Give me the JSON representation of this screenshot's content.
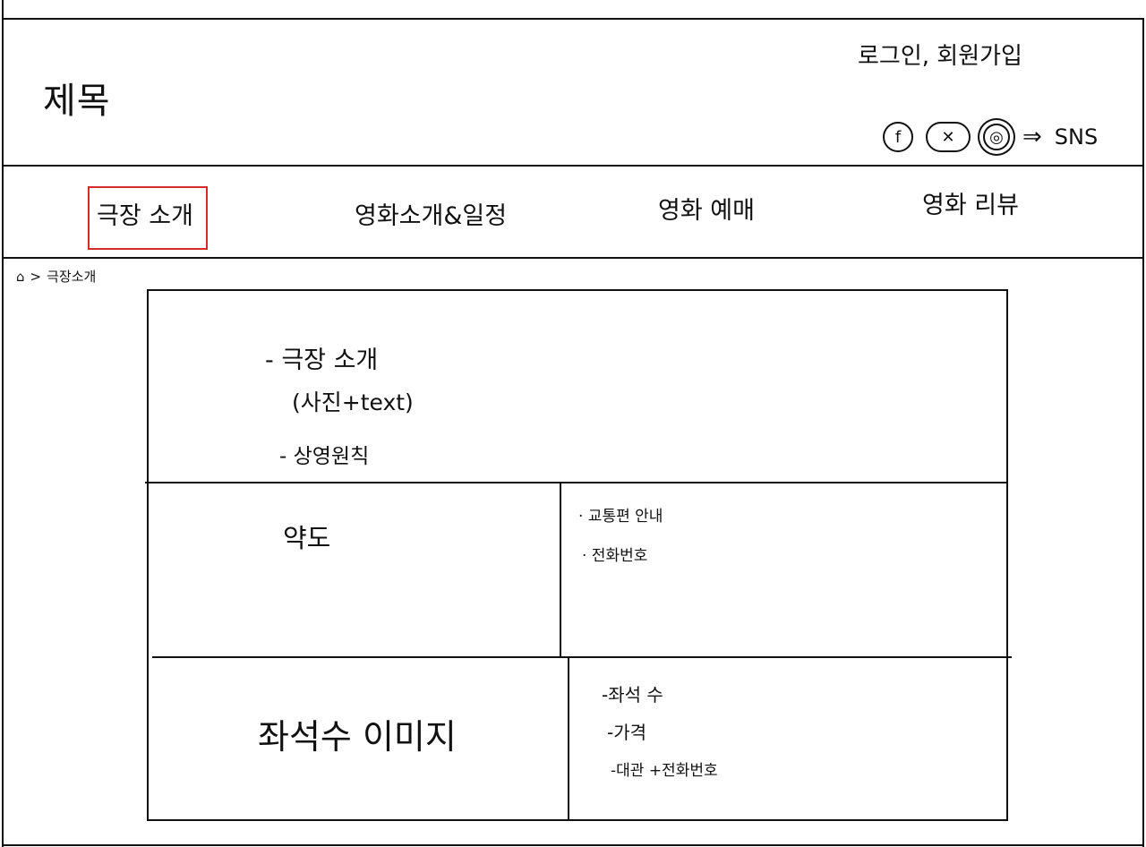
{
  "header": {
    "title": "제목",
    "auth_links": "로그인, 회원가입",
    "sns_icons": [
      {
        "name": "facebook-icon",
        "glyph": "f"
      },
      {
        "name": "twitter-icon",
        "glyph": "✕"
      },
      {
        "name": "instagram-icon",
        "glyph": "◎"
      }
    ],
    "sns_arrow": "⇒",
    "sns_label": "SNS"
  },
  "nav": {
    "items": [
      {
        "label": "극장 소개"
      },
      {
        "label": "영화소개&일정"
      },
      {
        "label": "영화 예매"
      },
      {
        "label": "영화 리뷰"
      }
    ]
  },
  "breadcrumb": {
    "home_icon": "⌂",
    "separator": ">",
    "current": "극장소개"
  },
  "content": {
    "intro": {
      "heading": "- 극장 소개",
      "sub": "(사진+text)",
      "policy": "- 상영원칙"
    },
    "map": {
      "label": "약도",
      "transport": "· 교통편 안내",
      "phone": "· 전화번호"
    },
    "seats": {
      "image_label": "좌석수 이미지",
      "count": "-좌석 수",
      "price": "-가격",
      "rental": "-대관 +전화번호"
    }
  }
}
